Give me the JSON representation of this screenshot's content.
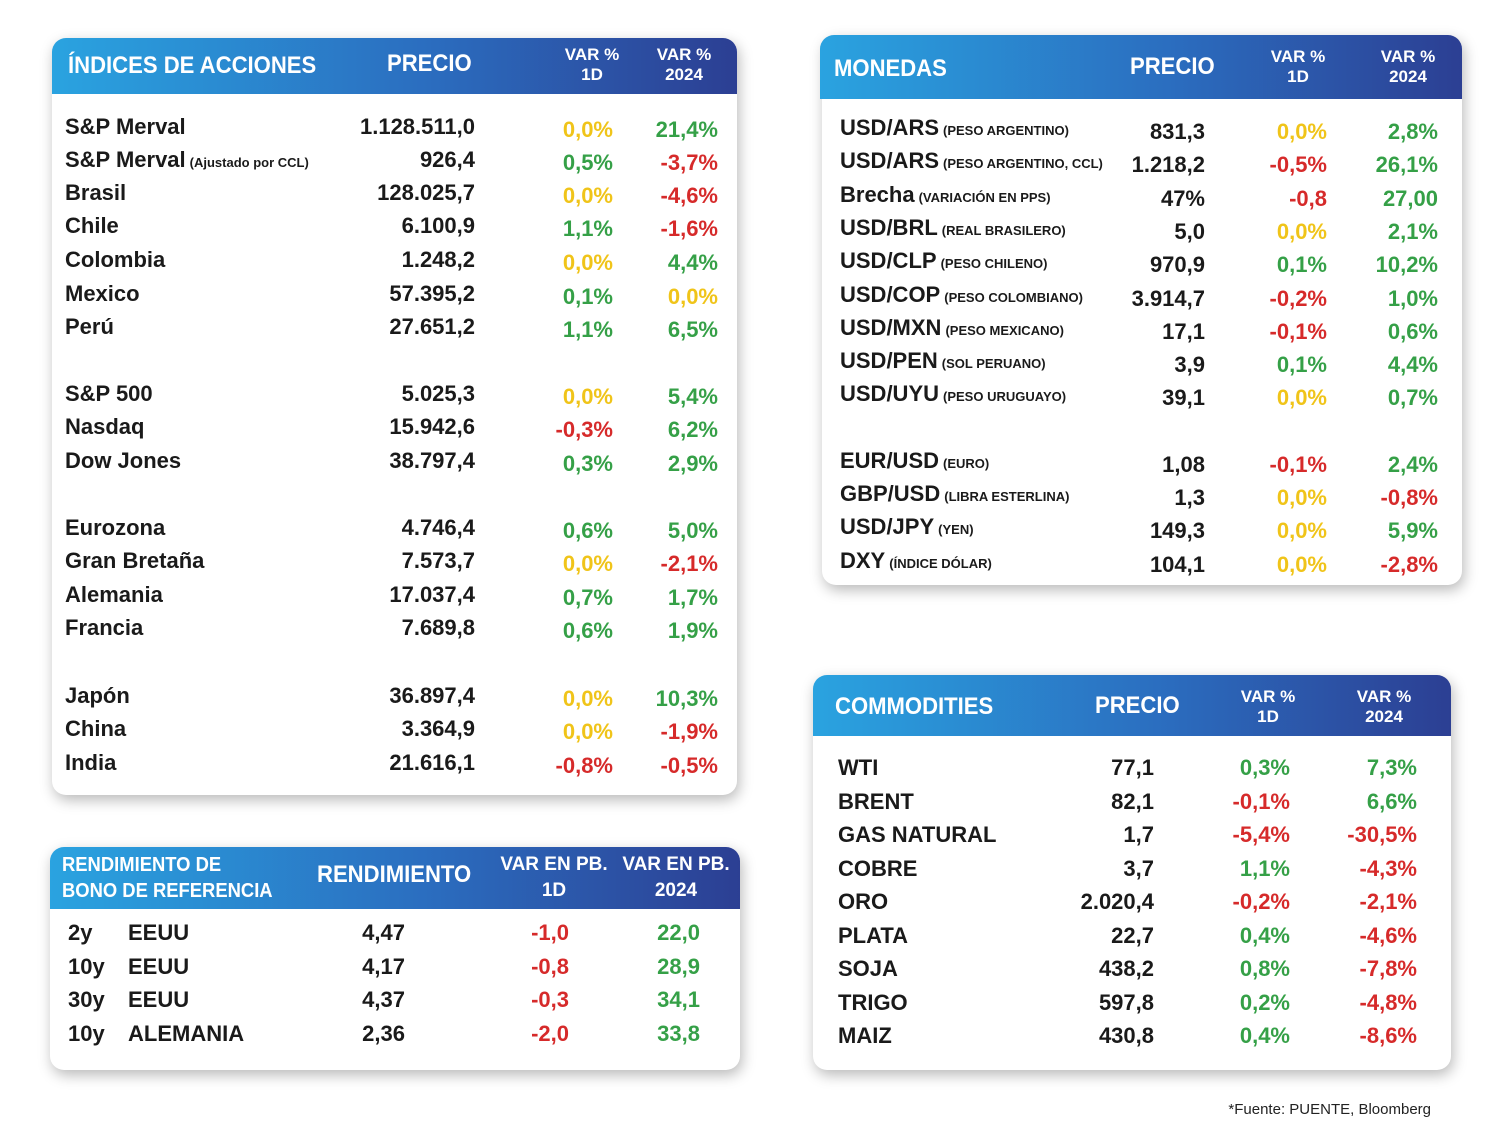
{
  "indices": {
    "header": {
      "title": "ÍNDICES DE ACCIONES",
      "price": "PRECIO",
      "var1d": [
        "VAR %",
        "1D"
      ],
      "var2024": [
        "VAR %",
        "2024"
      ]
    },
    "rows": [
      {
        "name": "S&P Merval",
        "sub": "",
        "price": "1.128.511,0",
        "d1": "0,0%",
        "y": "21,4%"
      },
      {
        "name": "S&P Merval",
        "sub": "(Ajustado por CCL)",
        "price": "926,4",
        "d1": "0,5%",
        "y": "-3,7%"
      },
      {
        "name": "Brasil",
        "sub": "",
        "price": "128.025,7",
        "d1": "0,0%",
        "y": "-4,6%"
      },
      {
        "name": "Chile",
        "sub": "",
        "price": "6.100,9",
        "d1": "1,1%",
        "y": "-1,6%"
      },
      {
        "name": "Colombia",
        "sub": "",
        "price": "1.248,2",
        "d1": "0,0%",
        "y": "4,4%"
      },
      {
        "name": "Mexico",
        "sub": "",
        "price": "57.395,2",
        "d1": "0,1%",
        "y": "0,0%"
      },
      {
        "name": "Perú",
        "sub": "",
        "price": "27.651,2",
        "d1": "1,1%",
        "y": "6,5%"
      },
      {
        "name": "S&P 500",
        "sub": "",
        "price": "5.025,3",
        "d1": "0,0%",
        "y": "5,4%"
      },
      {
        "name": "Nasdaq",
        "sub": "",
        "price": "15.942,6",
        "d1": "-0,3%",
        "y": "6,2%"
      },
      {
        "name": "Dow Jones",
        "sub": "",
        "price": "38.797,4",
        "d1": "0,3%",
        "y": "2,9%"
      },
      {
        "name": "Eurozona",
        "sub": "",
        "price": "4.746,4",
        "d1": "0,6%",
        "y": "5,0%"
      },
      {
        "name": "Gran Bretaña",
        "sub": "",
        "price": "7.573,7",
        "d1": "0,0%",
        "y": "-2,1%"
      },
      {
        "name": "Alemania",
        "sub": "",
        "price": "17.037,4",
        "d1": "0,7%",
        "y": "1,7%"
      },
      {
        "name": "Francia",
        "sub": "",
        "price": "7.689,8",
        "d1": "0,6%",
        "y": "1,9%"
      },
      {
        "name": "Japón",
        "sub": "",
        "price": "36.897,4",
        "d1": "0,0%",
        "y": "10,3%"
      },
      {
        "name": "China",
        "sub": "",
        "price": "3.364,9",
        "d1": "0,0%",
        "y": "-1,9%"
      },
      {
        "name": "India",
        "sub": "",
        "price": "21.616,1",
        "d1": "-0,8%",
        "y": "-0,5%"
      }
    ]
  },
  "monedas": {
    "header": {
      "title": "MONEDAS",
      "price": "PRECIO",
      "var1d": [
        "VAR %",
        "1D"
      ],
      "var2024": [
        "VAR %",
        "2024"
      ]
    },
    "rows": [
      {
        "name": "USD/ARS",
        "sub": "(PESO ARGENTINO)",
        "price": "831,3",
        "d1": "0,0%",
        "y": "2,8%"
      },
      {
        "name": "USD/ARS",
        "sub": "(PESO ARGENTINO, CCL)",
        "price": "1.218,2",
        "d1": "-0,5%",
        "y": "26,1%"
      },
      {
        "name": "Brecha",
        "sub": "(VARIACIÓN EN PPS)",
        "price": "47%",
        "d1": "-0,8",
        "y": "27,00"
      },
      {
        "name": "USD/BRL",
        "sub": "(REAL BRASILERO)",
        "price": "5,0",
        "d1": "0,0%",
        "y": "2,1%"
      },
      {
        "name": "USD/CLP",
        "sub": "(PESO CHILENO)",
        "price": "970,9",
        "d1": "0,1%",
        "y": "10,2%"
      },
      {
        "name": "USD/COP",
        "sub": "(PESO COLOMBIANO)",
        "price": "3.914,7",
        "d1": "-0,2%",
        "y": "1,0%"
      },
      {
        "name": "USD/MXN",
        "sub": "(PESO MEXICANO)",
        "price": "17,1",
        "d1": "-0,1%",
        "y": "0,6%"
      },
      {
        "name": "USD/PEN",
        "sub": "(SOL PERUANO)",
        "price": "3,9",
        "d1": "0,1%",
        "y": "4,4%"
      },
      {
        "name": "USD/UYU",
        "sub": "(PESO URUGUAYO)",
        "price": "39,1",
        "d1": "0,0%",
        "y": "0,7%"
      },
      {
        "name": "EUR/USD",
        "sub": "(EURO)",
        "price": "1,08",
        "d1": "-0,1%",
        "y": "2,4%"
      },
      {
        "name": "GBP/USD",
        "sub": "(LIBRA ESTERLINA)",
        "price": "1,3",
        "d1": "0,0%",
        "y": "-0,8%"
      },
      {
        "name": "USD/JPY",
        "sub": "(YEN)",
        "price": "149,3",
        "d1": "0,0%",
        "y": "5,9%"
      },
      {
        "name": "DXY",
        "sub": "(ÍNDICE DÓLAR)",
        "price": "104,1",
        "d1": "0,0%",
        "y": "-2,8%"
      }
    ]
  },
  "bonos": {
    "header": {
      "title": [
        "RENDIMIENTO DE",
        "BONO DE REFERENCIA"
      ],
      "yield": "RENDIMIENTO",
      "var1d": [
        "VAR EN PB.",
        "1D"
      ],
      "var2024": [
        "VAR EN PB.",
        "2024"
      ]
    },
    "rows": [
      {
        "term": "2y",
        "country": "EEUU",
        "yield": "4,47",
        "d1": "-1,0",
        "y": "22,0"
      },
      {
        "term": "10y",
        "country": "EEUU",
        "yield": "4,17",
        "d1": "-0,8",
        "y": "28,9"
      },
      {
        "term": "30y",
        "country": "EEUU",
        "yield": "4,37",
        "d1": "-0,3",
        "y": "34,1"
      },
      {
        "term": "10y",
        "country": "ALEMANIA",
        "yield": "2,36",
        "d1": "-2,0",
        "y": "33,8"
      }
    ]
  },
  "commodities": {
    "header": {
      "title": "COMMODITIES",
      "price": "PRECIO",
      "var1d": [
        "VAR %",
        "1D"
      ],
      "var2024": [
        "VAR %",
        "2024"
      ]
    },
    "rows": [
      {
        "name": "WTI",
        "price": "77,1",
        "d1": "0,3%",
        "y": "7,3%"
      },
      {
        "name": "BRENT",
        "price": "82,1",
        "d1": "-0,1%",
        "y": "6,6%"
      },
      {
        "name": "GAS NATURAL",
        "price": "1,7",
        "d1": "-5,4%",
        "y": "-30,5%"
      },
      {
        "name": "COBRE",
        "price": "3,7",
        "d1": "1,1%",
        "y": "-4,3%"
      },
      {
        "name": "ORO",
        "price": "2.020,4",
        "d1": "-0,2%",
        "y": "-2,1%"
      },
      {
        "name": "PLATA",
        "price": "22,7",
        "d1": "0,4%",
        "y": "-4,6%"
      },
      {
        "name": "SOJA",
        "price": "438,2",
        "d1": "0,8%",
        "y": "-7,8%"
      },
      {
        "name": "TRIGO",
        "price": "597,8",
        "d1": "0,2%",
        "y": "-4,8%"
      },
      {
        "name": "MAIZ",
        "price": "430,8",
        "d1": "0,4%",
        "y": "-8,6%"
      }
    ]
  },
  "footer": "*Fuente: PUENTE, Bloomberg",
  "colors": {
    "positive": "#35a047",
    "negative": "#d62a2a",
    "zero": "#f0c419",
    "header_start": "#2aa3e0",
    "header_end": "#2c3f93"
  }
}
